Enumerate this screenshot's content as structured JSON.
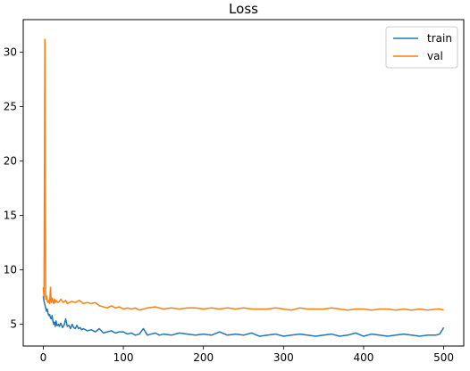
{
  "chart_data": {
    "type": "line",
    "title": "Loss",
    "xlabel": "",
    "ylabel": "",
    "xlim": [
      -25,
      525
    ],
    "ylim": [
      3.0,
      33.0
    ],
    "xticks": [
      0,
      100,
      200,
      300,
      400,
      500
    ],
    "yticks": [
      5,
      10,
      15,
      20,
      25,
      30
    ],
    "grid": false,
    "legend_position": "top-right",
    "series": [
      {
        "name": "train",
        "color": "#1f77b4",
        "x": [
          0,
          1,
          2,
          3,
          4,
          5,
          6,
          7,
          8,
          9,
          10,
          11,
          12,
          13,
          14,
          15,
          16,
          17,
          18,
          19,
          20,
          22,
          24,
          26,
          28,
          30,
          32,
          34,
          36,
          38,
          40,
          42,
          44,
          46,
          48,
          50,
          55,
          60,
          65,
          70,
          75,
          80,
          85,
          90,
          95,
          100,
          105,
          110,
          115,
          120,
          125,
          130,
          135,
          140,
          145,
          150,
          160,
          170,
          180,
          190,
          200,
          210,
          220,
          230,
          240,
          250,
          260,
          270,
          280,
          290,
          300,
          310,
          320,
          330,
          340,
          350,
          360,
          370,
          380,
          390,
          400,
          410,
          420,
          430,
          440,
          450,
          460,
          470,
          480,
          490,
          495,
          500
        ],
        "y": [
          7.6,
          7.1,
          6.8,
          6.5,
          6.2,
          6.4,
          6.0,
          5.8,
          5.9,
          5.6,
          5.5,
          5.8,
          5.3,
          5.0,
          5.2,
          4.8,
          5.3,
          4.9,
          4.9,
          5.0,
          4.8,
          5.1,
          4.7,
          4.9,
          5.5,
          4.8,
          4.9,
          4.6,
          5.0,
          4.7,
          4.6,
          4.9,
          4.6,
          4.7,
          4.5,
          4.6,
          4.4,
          4.5,
          4.3,
          4.6,
          4.2,
          4.3,
          4.4,
          4.2,
          4.3,
          4.3,
          4.1,
          4.2,
          4.0,
          4.1,
          4.6,
          4.0,
          4.1,
          4.2,
          4.0,
          4.1,
          4.0,
          4.2,
          4.1,
          4.0,
          4.1,
          4.0,
          4.3,
          4.0,
          4.1,
          4.0,
          4.2,
          3.9,
          4.0,
          4.1,
          3.9,
          4.0,
          4.1,
          4.0,
          3.9,
          4.0,
          4.1,
          3.9,
          4.0,
          4.2,
          3.9,
          4.1,
          4.0,
          3.9,
          4.0,
          4.1,
          4.0,
          3.9,
          4.0,
          4.0,
          4.1,
          4.7
        ]
      },
      {
        "name": "val",
        "color": "#ff7f0e",
        "x": [
          0,
          1,
          2,
          3,
          4,
          5,
          6,
          7,
          8,
          9,
          10,
          11,
          12,
          13,
          14,
          15,
          16,
          18,
          20,
          22,
          25,
          28,
          30,
          35,
          40,
          45,
          50,
          55,
          60,
          65,
          70,
          75,
          80,
          85,
          90,
          95,
          100,
          105,
          110,
          115,
          120,
          130,
          140,
          145,
          150,
          160,
          170,
          180,
          190,
          200,
          210,
          220,
          230,
          240,
          250,
          260,
          270,
          280,
          290,
          300,
          310,
          320,
          330,
          340,
          350,
          360,
          370,
          380,
          390,
          400,
          410,
          420,
          430,
          440,
          450,
          460,
          470,
          480,
          490,
          495,
          500
        ],
        "y": [
          8.4,
          7.5,
          31.2,
          7.3,
          7.6,
          7.1,
          7.0,
          7.2,
          6.9,
          8.4,
          7.0,
          7.4,
          7.1,
          6.9,
          7.3,
          7.0,
          7.2,
          7.0,
          7.1,
          7.3,
          7.0,
          7.2,
          6.9,
          7.1,
          7.0,
          7.2,
          6.9,
          7.0,
          6.9,
          7.0,
          6.7,
          6.6,
          6.5,
          6.7,
          6.5,
          6.6,
          6.4,
          6.5,
          6.4,
          6.5,
          6.3,
          6.5,
          6.6,
          6.5,
          6.4,
          6.5,
          6.4,
          6.5,
          6.5,
          6.4,
          6.5,
          6.4,
          6.5,
          6.4,
          6.5,
          6.4,
          6.4,
          6.4,
          6.5,
          6.4,
          6.3,
          6.5,
          6.4,
          6.4,
          6.4,
          6.5,
          6.4,
          6.3,
          6.4,
          6.4,
          6.3,
          6.4,
          6.4,
          6.3,
          6.4,
          6.3,
          6.4,
          6.3,
          6.4,
          6.4,
          6.3
        ]
      }
    ]
  }
}
